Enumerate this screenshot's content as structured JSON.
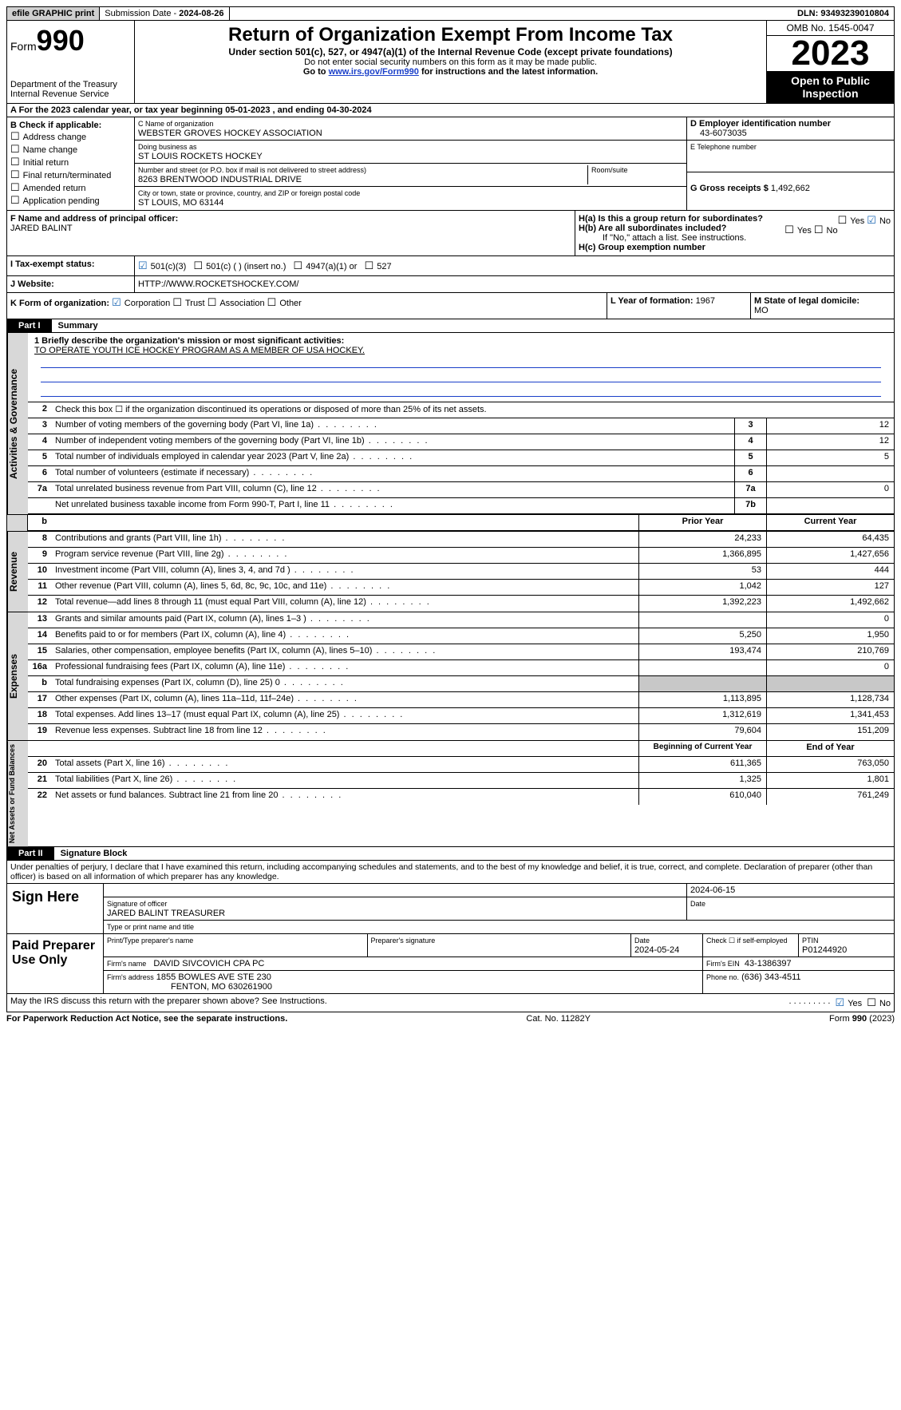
{
  "topbar": {
    "efile": "efile GRAPHIC print",
    "submission_label": "Submission Date - ",
    "submission_date": "2024-08-26",
    "dln_label": "DLN: ",
    "dln": "93493239010804"
  },
  "header": {
    "form_prefix": "Form",
    "form_num": "990",
    "title": "Return of Organization Exempt From Income Tax",
    "subtitle": "Under section 501(c), 527, or 4947(a)(1) of the Internal Revenue Code (except private foundations)",
    "note1": "Do not enter social security numbers on this form as it may be made public.",
    "note2_pre": "Go to ",
    "note2_link": "www.irs.gov/Form990",
    "note2_post": " for instructions and the latest information.",
    "dept": "Department of the Treasury\nInternal Revenue Service",
    "omb": "OMB No. 1545-0047",
    "year": "2023",
    "open": "Open to Public Inspection"
  },
  "sectionA": {
    "text_pre": "A For the 2023 calendar year, or tax year beginning ",
    "begin": "05-01-2023",
    "mid": " , and ending ",
    "end": "04-30-2024"
  },
  "boxB": {
    "title": "B Check if applicable:",
    "items": [
      "Address change",
      "Name change",
      "Initial return",
      "Final return/terminated",
      "Amended return",
      "Application pending"
    ]
  },
  "boxC": {
    "name_label": "C Name of organization",
    "name": "WEBSTER GROVES HOCKEY ASSOCIATION",
    "dba_label": "Doing business as",
    "dba": "ST LOUIS ROCKETS HOCKEY",
    "street_label": "Number and street (or P.O. box if mail is not delivered to street address)",
    "room_label": "Room/suite",
    "street": "8263 BRENTWOOD INDUSTRIAL DRIVE",
    "city_label": "City or town, state or province, country, and ZIP or foreign postal code",
    "city": "ST LOUIS, MO  63144"
  },
  "boxD": {
    "label": "D Employer identification number",
    "value": "43-6073035"
  },
  "boxE": {
    "label": "E Telephone number",
    "value": ""
  },
  "boxG": {
    "label": "G Gross receipts $ ",
    "value": "1,492,662"
  },
  "boxF": {
    "label": "F  Name and address of principal officer:",
    "name": "JARED BALINT"
  },
  "boxH": {
    "a_label": "H(a)  Is this a group return for subordinates?",
    "a_yes": "Yes",
    "a_no": "No",
    "b_label": "H(b)  Are all subordinates included?",
    "b_note": "If \"No,\" attach a list. See instructions.",
    "c_label": "H(c)  Group exemption number"
  },
  "taxStatus": {
    "label": "I  Tax-exempt status:",
    "opts": [
      "501(c)(3)",
      "501(c) (  ) (insert no.)",
      "4947(a)(1) or",
      "527"
    ]
  },
  "website": {
    "label": "J  Website:",
    "value": "HTTP://WWW.ROCKETSHOCKEY.COM/"
  },
  "boxK": {
    "label": "K Form of organization:",
    "opts": [
      "Corporation",
      "Trust",
      "Association",
      "Other"
    ]
  },
  "boxL": {
    "label": "L Year of formation: ",
    "value": "1967"
  },
  "boxM": {
    "label": "M State of legal domicile:",
    "value": "MO"
  },
  "part1": {
    "tab": "Part I",
    "title": "Summary"
  },
  "mission": {
    "q": "1  Briefly describe the organization's mission or most significant activities:",
    "text": "TO OPERATE YOUTH ICE HOCKEY PROGRAM AS A MEMBER OF USA HOCKEY."
  },
  "line2": "Check this box ☐ if the organization discontinued its operations or disposed of more than 25% of its net assets.",
  "gov_lines": [
    {
      "n": "3",
      "d": "Number of voting members of the governing body (Part VI, line 1a)",
      "box": "3",
      "v": "12"
    },
    {
      "n": "4",
      "d": "Number of independent voting members of the governing body (Part VI, line 1b)",
      "box": "4",
      "v": "12"
    },
    {
      "n": "5",
      "d": "Total number of individuals employed in calendar year 2023 (Part V, line 2a)",
      "box": "5",
      "v": "5"
    },
    {
      "n": "6",
      "d": "Total number of volunteers (estimate if necessary)",
      "box": "6",
      "v": ""
    },
    {
      "n": "7a",
      "d": "Total unrelated business revenue from Part VIII, column (C), line 12",
      "box": "7a",
      "v": "0"
    },
    {
      "n": "",
      "d": "Net unrelated business taxable income from Form 990-T, Part I, line 11",
      "box": "7b",
      "v": ""
    }
  ],
  "col_headers": {
    "prior": "Prior Year",
    "current": "Current Year",
    "begin": "Beginning of Current Year",
    "end": "End of Year"
  },
  "revenue": [
    {
      "n": "8",
      "d": "Contributions and grants (Part VIII, line 1h)",
      "p": "24,233",
      "c": "64,435"
    },
    {
      "n": "9",
      "d": "Program service revenue (Part VIII, line 2g)",
      "p": "1,366,895",
      "c": "1,427,656"
    },
    {
      "n": "10",
      "d": "Investment income (Part VIII, column (A), lines 3, 4, and 7d )",
      "p": "53",
      "c": "444"
    },
    {
      "n": "11",
      "d": "Other revenue (Part VIII, column (A), lines 5, 6d, 8c, 9c, 10c, and 11e)",
      "p": "1,042",
      "c": "127"
    },
    {
      "n": "12",
      "d": "Total revenue—add lines 8 through 11 (must equal Part VIII, column (A), line 12)",
      "p": "1,392,223",
      "c": "1,492,662"
    }
  ],
  "expenses": [
    {
      "n": "13",
      "d": "Grants and similar amounts paid (Part IX, column (A), lines 1–3 )",
      "p": "",
      "c": "0"
    },
    {
      "n": "14",
      "d": "Benefits paid to or for members (Part IX, column (A), line 4)",
      "p": "5,250",
      "c": "1,950"
    },
    {
      "n": "15",
      "d": "Salaries, other compensation, employee benefits (Part IX, column (A), lines 5–10)",
      "p": "193,474",
      "c": "210,769"
    },
    {
      "n": "16a",
      "d": "Professional fundraising fees (Part IX, column (A), line 11e)",
      "p": "",
      "c": "0"
    },
    {
      "n": "b",
      "d": "Total fundraising expenses (Part IX, column (D), line 25) 0",
      "p": "shade",
      "c": "shade"
    },
    {
      "n": "17",
      "d": "Other expenses (Part IX, column (A), lines 11a–11d, 11f–24e)",
      "p": "1,113,895",
      "c": "1,128,734"
    },
    {
      "n": "18",
      "d": "Total expenses. Add lines 13–17 (must equal Part IX, column (A), line 25)",
      "p": "1,312,619",
      "c": "1,341,453"
    },
    {
      "n": "19",
      "d": "Revenue less expenses. Subtract line 18 from line 12",
      "p": "79,604",
      "c": "151,209"
    }
  ],
  "netassets": [
    {
      "n": "20",
      "d": "Total assets (Part X, line 16)",
      "p": "611,365",
      "c": "763,050"
    },
    {
      "n": "21",
      "d": "Total liabilities (Part X, line 26)",
      "p": "1,325",
      "c": "1,801"
    },
    {
      "n": "22",
      "d": "Net assets or fund balances. Subtract line 21 from line 20",
      "p": "610,040",
      "c": "761,249"
    }
  ],
  "part2": {
    "tab": "Part II",
    "title": "Signature Block"
  },
  "penalties": "Under penalties of perjury, I declare that I have examined this return, including accompanying schedules and statements, and to the best of my knowledge and belief, it is true, correct, and complete. Declaration of preparer (other than officer) is based on all information of which preparer has any knowledge.",
  "sign": {
    "here": "Sign Here",
    "date": "2024-06-15",
    "sig_label": "Signature of officer",
    "date_label": "Date",
    "name": "JARED BALINT  TREASURER",
    "name_label": "Type or print name and title"
  },
  "preparer": {
    "label": "Paid Preparer Use Only",
    "print_label": "Print/Type preparer's name",
    "sig_label": "Preparer's signature",
    "date_label": "Date",
    "date": "2024-05-24",
    "check_label": "Check ☐ if self-employed",
    "ptin_label": "PTIN",
    "ptin": "P01244920",
    "firm_name_label": "Firm's name",
    "firm_name": "DAVID SIVCOVICH CPA PC",
    "firm_ein_label": "Firm's EIN",
    "firm_ein": "43-1386397",
    "firm_addr_label": "Firm's address",
    "firm_addr1": "1855 BOWLES AVE STE 230",
    "firm_addr2": "FENTON, MO  630261900",
    "phone_label": "Phone no.",
    "phone": "(636) 343-4511"
  },
  "discuss": {
    "q": "May the IRS discuss this return with the preparer shown above? See Instructions.",
    "yes": "Yes",
    "no": "No"
  },
  "footer": {
    "left": "For Paperwork Reduction Act Notice, see the separate instructions.",
    "mid": "Cat. No. 11282Y",
    "right_pre": "Form ",
    "right_b": "990",
    "right_post": " (2023)"
  },
  "side_labels": {
    "gov": "Activities & Governance",
    "rev": "Revenue",
    "exp": "Expenses",
    "net": "Net Assets or Fund Balances"
  }
}
